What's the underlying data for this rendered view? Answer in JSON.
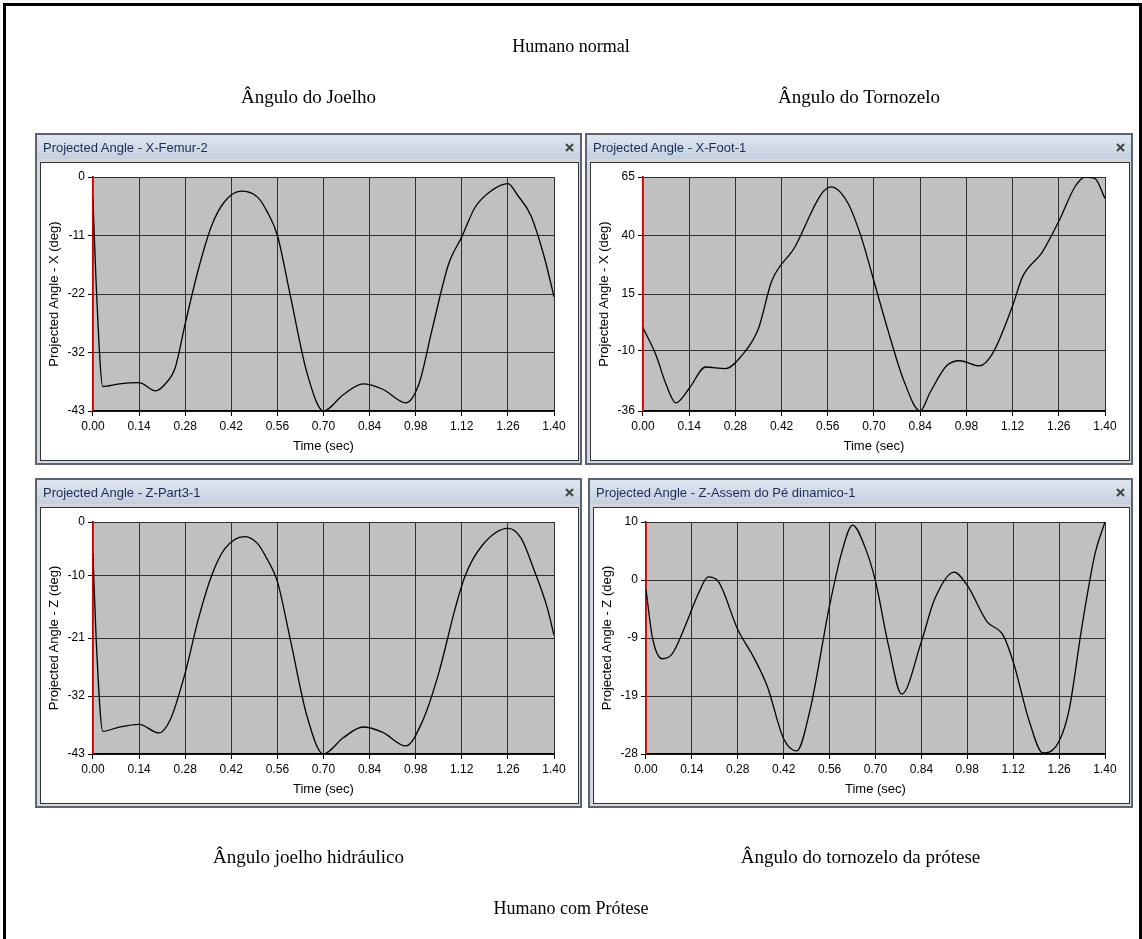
{
  "chart_data": [
    {
      "type": "line",
      "title": "Projected Angle - X-Femur-2",
      "subtitle": "Ângulo do Joelho",
      "annotations": [
        "Humano normal"
      ],
      "xlabel": "Time (sec)",
      "ylabel": "Projected Angle - X (deg)",
      "grid": true,
      "x": [
        0,
        0.01,
        0.03,
        0.08,
        0.14,
        0.19,
        0.22,
        0.25,
        0.28,
        0.32,
        0.36,
        0.4,
        0.45,
        0.5,
        0.53,
        0.56,
        0.6,
        0.65,
        0.7,
        0.76,
        0.82,
        0.88,
        0.95,
        0.99,
        1.03,
        1.08,
        1.12,
        1.16,
        1.21,
        1.26,
        1.29,
        1.33,
        1.37,
        1.4
      ],
      "series": [
        {
          "color": "#000000",
          "values": [
            -4,
            -20,
            -38.5,
            -38,
            -37.8,
            -39.3,
            -38,
            -35,
            -27,
            -17,
            -9,
            -4.5,
            -2.6,
            -3.7,
            -6.5,
            -10.7,
            -22,
            -36,
            -43,
            -40,
            -38,
            -39,
            -41.5,
            -38,
            -28,
            -16,
            -11,
            -5.6,
            -2.5,
            -1.2,
            -3.4,
            -7.1,
            -14.6,
            -22
          ]
        }
      ],
      "xlim": [
        0,
        1.4
      ],
      "xticks": [
        {
          "value": 0,
          "label": "0.00"
        },
        {
          "value": 0.14,
          "label": "0.14"
        },
        {
          "value": 0.28,
          "label": "0.28"
        },
        {
          "value": 0.42,
          "label": "0.42"
        },
        {
          "value": 0.56,
          "label": "0.56"
        },
        {
          "value": 0.7,
          "label": "0.70"
        },
        {
          "value": 0.84,
          "label": "0.84"
        },
        {
          "value": 0.98,
          "label": "0.98"
        },
        {
          "value": 1.12,
          "label": "1.12"
        },
        {
          "value": 1.26,
          "label": "1.26"
        },
        {
          "value": 1.4,
          "label": "1.40"
        }
      ],
      "ylim": [
        -43,
        0
      ],
      "yticks": [
        -43,
        {
          "value": -32.25,
          "label": "-32"
        },
        {
          "value": -21.5,
          "label": "-22"
        },
        {
          "value": -10.75,
          "label": "-11"
        },
        0
      ],
      "ref_lines": [
        {
          "axis": "x",
          "value": 0,
          "color": "#ff0000"
        }
      ]
    },
    {
      "type": "line",
      "title": "Projected Angle - X-Foot-1",
      "subtitle": "Ângulo do Tornozelo",
      "xlabel": "Time (sec)",
      "ylabel": "Projected Angle - X (deg)",
      "grid": true,
      "x": [
        0,
        0.04,
        0.07,
        0.1,
        0.14,
        0.19,
        0.25,
        0.3,
        0.35,
        0.39,
        0.46,
        0.54,
        0.57,
        0.62,
        0.66,
        0.7,
        0.74,
        0.79,
        0.84,
        0.87,
        0.92,
        0.96,
        1.02,
        1.06,
        1.12,
        1.15,
        1.21,
        1.26,
        1.31,
        1.34,
        1.37,
        1.4
      ],
      "series": [
        {
          "color": "#000000",
          "values": [
            0,
            -12,
            -24.5,
            -32.5,
            -26.3,
            -17,
            -17.7,
            -12,
            -0.4,
            20,
            34.7,
            57.5,
            60.7,
            54,
            39.7,
            20,
            0,
            -22.7,
            -36,
            -28,
            -16.5,
            -14.3,
            -16.5,
            -11,
            9.4,
            21.9,
            32.6,
            45.9,
            61,
            65,
            64.3,
            55.7
          ]
        }
      ],
      "xlim": [
        0,
        1.4
      ],
      "xticks": [
        {
          "value": 0,
          "label": "0.00"
        },
        {
          "value": 0.14,
          "label": "0.14"
        },
        {
          "value": 0.28,
          "label": "0.28"
        },
        {
          "value": 0.42,
          "label": "0.42"
        },
        {
          "value": 0.56,
          "label": "0.56"
        },
        {
          "value": 0.7,
          "label": "0.70"
        },
        {
          "value": 0.84,
          "label": "0.84"
        },
        {
          "value": 0.98,
          "label": "0.98"
        },
        {
          "value": 1.12,
          "label": "1.12"
        },
        {
          "value": 1.26,
          "label": "1.26"
        },
        {
          "value": 1.4,
          "label": "1.40"
        }
      ],
      "ylim": [
        -36,
        65
      ],
      "yticks": [
        -36,
        -10,
        {
          "value": 14.5,
          "label": "15"
        },
        {
          "value": 39.75,
          "label": "40"
        },
        65
      ],
      "ref_lines": [
        {
          "axis": "x",
          "value": 0,
          "color": "#ff0000"
        }
      ]
    },
    {
      "type": "line",
      "title": "Projected Angle - Z-Part3-1",
      "subtitle": "Ângulo joelho hidráulico",
      "annotations": [
        "Humano com Prótese"
      ],
      "xlabel": "Time (sec)",
      "ylabel": "Projected Angle - Z (deg)",
      "grid": true,
      "x": [
        0,
        0.01,
        0.03,
        0.08,
        0.14,
        0.2,
        0.235,
        0.28,
        0.32,
        0.36,
        0.4,
        0.46,
        0.5,
        0.53,
        0.56,
        0.6,
        0.65,
        0.7,
        0.76,
        0.82,
        0.88,
        0.95,
        1.0,
        1.05,
        1.1,
        1.13,
        1.18,
        1.26,
        1.3,
        1.34,
        1.38,
        1.4
      ],
      "series": [
        {
          "color": "#000000",
          "values": [
            -6,
            -22,
            -38.8,
            -38,
            -37.5,
            -39.1,
            -36.6,
            -28,
            -18,
            -10,
            -5,
            -2.7,
            -4,
            -7,
            -11,
            -22,
            -36,
            -43,
            -40,
            -38,
            -39,
            -41.5,
            -37,
            -28,
            -16,
            -10,
            -4.5,
            -1.2,
            -3,
            -9,
            -16,
            -21
          ]
        }
      ],
      "xlim": [
        0,
        1.4
      ],
      "xticks": [
        {
          "value": 0,
          "label": "0.00"
        },
        {
          "value": 0.14,
          "label": "0.14"
        },
        {
          "value": 0.28,
          "label": "0.28"
        },
        {
          "value": 0.42,
          "label": "0.42"
        },
        {
          "value": 0.56,
          "label": "0.56"
        },
        {
          "value": 0.7,
          "label": "0.70"
        },
        {
          "value": 0.84,
          "label": "0.84"
        },
        {
          "value": 0.98,
          "label": "0.98"
        },
        {
          "value": 1.12,
          "label": "1.12"
        },
        {
          "value": 1.26,
          "label": "1.26"
        },
        {
          "value": 1.4,
          "label": "1.40"
        }
      ],
      "ylim": [
        -43,
        0
      ],
      "yticks": [
        -43,
        {
          "value": -32.25,
          "label": "-32"
        },
        {
          "value": -21.5,
          "label": "-21"
        },
        -10,
        0
      ],
      "ref_lines": [
        {
          "axis": "x",
          "value": 0,
          "color": "#ff0000"
        }
      ]
    },
    {
      "type": "line",
      "title": "Projected Angle - Z-Assem do Pé dinamico-1",
      "subtitle": "Ângulo do tornozelo da prótese",
      "xlabel": "Time (sec)",
      "ylabel": "Projected Angle - Z (deg)",
      "grid": true,
      "x": [
        0,
        0.02,
        0.05,
        0.08,
        0.12,
        0.16,
        0.19,
        0.22,
        0.28,
        0.33,
        0.37,
        0.42,
        0.46,
        0.5,
        0.56,
        0.6,
        0.63,
        0.67,
        0.7,
        0.74,
        0.78,
        0.84,
        0.88,
        0.94,
        0.98,
        1.04,
        1.09,
        1.12,
        1.17,
        1.21,
        1.25,
        1.29,
        1.33,
        1.37,
        1.4
      ],
      "series": [
        {
          "color": "#000000",
          "values": [
            -1,
            -9,
            -12.4,
            -11.6,
            -7,
            -1.7,
            1,
            0.3,
            -7.6,
            -12.3,
            -16.9,
            -25.5,
            -27.5,
            -20.9,
            -3.7,
            5.6,
            9.5,
            5.6,
            0.3,
            -10.3,
            -18.2,
            -9.6,
            -2.7,
            1.8,
            -0.4,
            -6.3,
            -8.6,
            -12.9,
            -22.8,
            -27.8,
            -26.8,
            -20.9,
            -7,
            4.9,
            10
          ]
        }
      ],
      "xlim": [
        0,
        1.4
      ],
      "xticks": [
        {
          "value": 0,
          "label": "0.00"
        },
        {
          "value": 0.14,
          "label": "0.14"
        },
        {
          "value": 0.28,
          "label": "0.28"
        },
        {
          "value": 0.42,
          "label": "0.42"
        },
        {
          "value": 0.56,
          "label": "0.56"
        },
        {
          "value": 0.7,
          "label": "0.70"
        },
        {
          "value": 0.84,
          "label": "0.84"
        },
        {
          "value": 0.98,
          "label": "0.98"
        },
        {
          "value": 1.12,
          "label": "1.12"
        },
        {
          "value": 1.26,
          "label": "1.26"
        },
        {
          "value": 1.4,
          "label": "1.40"
        }
      ],
      "ylim": [
        -28,
        10
      ],
      "yticks": [
        -28,
        {
          "value": -18.5,
          "label": "-19"
        },
        {
          "value": -9,
          "label": "-9"
        },
        {
          "value": 0.5,
          "label": "0"
        },
        10
      ],
      "ref_lines": [
        {
          "axis": "x",
          "value": 0,
          "color": "#ff0000"
        }
      ]
    }
  ]
}
